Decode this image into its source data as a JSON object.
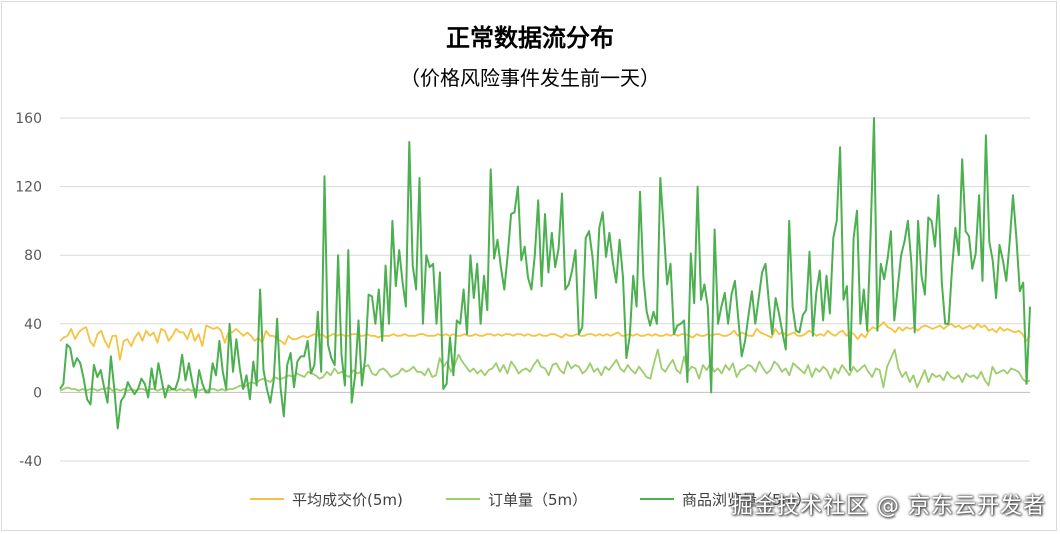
{
  "chart_data": {
    "type": "line",
    "title": "正常数据流分布",
    "subtitle": "（价格风险事件发生前一天）",
    "ylim": [
      -40,
      160
    ],
    "yticks": [
      -40,
      0,
      40,
      80,
      120,
      160
    ],
    "grid": true,
    "legend_position": "bottom",
    "series": [
      {
        "name": "平均成交价(5m)",
        "color": "#f5c342",
        "values": [
          30,
          32,
          33,
          37,
          31,
          35,
          37,
          38,
          30,
          27,
          34,
          36,
          30,
          26,
          33,
          33,
          19,
          30,
          31,
          27,
          32,
          35,
          30,
          36,
          33,
          35,
          29,
          37,
          36,
          30,
          33,
          37,
          35,
          35,
          31,
          37,
          30,
          34,
          27,
          39,
          38,
          37,
          38,
          36,
          29,
          35,
          35,
          37,
          35,
          33,
          35,
          33,
          30,
          32,
          29,
          36,
          33,
          33,
          31,
          30,
          28,
          33,
          31,
          31,
          32,
          33,
          32,
          33,
          34,
          33,
          34,
          32,
          33,
          34,
          33,
          34,
          33,
          33,
          34,
          34,
          33,
          33,
          34,
          33,
          33,
          32,
          33,
          33,
          33,
          34,
          33,
          33,
          34,
          33,
          33,
          33,
          34,
          34,
          33,
          33,
          33,
          34,
          33,
          34,
          33,
          34,
          33,
          33,
          34,
          33,
          33,
          34,
          33,
          33,
          34,
          34,
          33,
          34,
          33,
          34,
          34,
          33,
          34,
          34,
          33,
          34,
          33,
          33,
          34,
          33,
          33,
          34,
          34,
          33,
          32,
          34,
          33,
          33,
          34,
          33,
          33,
          34,
          34,
          33,
          34,
          33,
          34,
          33,
          34,
          35,
          33,
          33,
          34,
          33,
          34,
          33,
          33,
          34,
          33,
          34,
          33,
          33,
          34,
          33,
          34,
          33,
          34,
          34,
          33,
          32,
          34,
          33,
          33,
          34,
          33,
          34,
          34,
          33,
          33,
          34,
          36,
          33,
          35,
          34,
          33,
          33,
          37,
          35,
          34,
          33,
          32,
          37,
          34,
          35,
          33,
          34,
          35,
          33,
          33,
          34,
          36,
          35,
          33,
          34,
          33,
          36,
          34,
          33,
          35,
          36,
          33,
          35,
          34,
          31,
          34,
          32,
          36,
          38,
          37,
          39,
          41,
          38,
          37,
          35,
          38,
          36,
          38,
          37,
          38,
          36,
          38,
          39,
          38,
          37,
          38,
          39,
          37,
          39,
          40,
          38,
          39,
          37,
          38,
          39,
          37,
          40,
          38,
          39,
          36,
          37,
          35,
          38,
          36,
          37,
          36,
          35,
          36,
          34,
          30,
          33
        ]
      },
      {
        "name": "订单量（5m）",
        "color": "#9dcd6c",
        "values": [
          1,
          2,
          3,
          2,
          2,
          1,
          2,
          1,
          2,
          2,
          1,
          2,
          2,
          3,
          1,
          2,
          1,
          2,
          1,
          2,
          1,
          2,
          2,
          1,
          2,
          2,
          1,
          2,
          2,
          1,
          2,
          1,
          2,
          1,
          2,
          1,
          2,
          1,
          2,
          1,
          2,
          2,
          1,
          2,
          1,
          2,
          2,
          3,
          4,
          3,
          5,
          6,
          5,
          7,
          8,
          7,
          6,
          9,
          8,
          8,
          9,
          10,
          9,
          11,
          10,
          9,
          12,
          11,
          10,
          8,
          9,
          12,
          10,
          14,
          11,
          12,
          10,
          9,
          13,
          11,
          12,
          15,
          16,
          11,
          10,
          13,
          14,
          12,
          9,
          10,
          11,
          14,
          12,
          13,
          15,
          12,
          12,
          10,
          14,
          9,
          10,
          20,
          15,
          18,
          12,
          16,
          22,
          18,
          15,
          12,
          14,
          11,
          13,
          10,
          13,
          14,
          17,
          12,
          16,
          11,
          18,
          15,
          11,
          13,
          14,
          12,
          16,
          19,
          15,
          14,
          10,
          16,
          17,
          13,
          11,
          18,
          14,
          16,
          15,
          11,
          13,
          17,
          12,
          14,
          10,
          15,
          13,
          16,
          19,
          14,
          12,
          16,
          13,
          11,
          15,
          12,
          9,
          8,
          17,
          25,
          14,
          12,
          16,
          19,
          13,
          11,
          21,
          12,
          15,
          14,
          8,
          16,
          13,
          17,
          12,
          14,
          11,
          16,
          13,
          17,
          9,
          13,
          14,
          16,
          15,
          12,
          18,
          14,
          11,
          13,
          18,
          16,
          12,
          14,
          10,
          17,
          15,
          13,
          11,
          16,
          9,
          14,
          12,
          15,
          13,
          8,
          14,
          11,
          16,
          13,
          10,
          15,
          12,
          14,
          16,
          12,
          9,
          14,
          13,
          3,
          15,
          20,
          25,
          14,
          9,
          12,
          6,
          10,
          3,
          8,
          13,
          6,
          11,
          9,
          10,
          7,
          12,
          9,
          8,
          10,
          6,
          11,
          9,
          10,
          8,
          12,
          7,
          4,
          15,
          11,
          12,
          13,
          11,
          14,
          13,
          12,
          8,
          6,
          7
        ]
      },
      {
        "name": "商品浏览量（5m）",
        "color": "#4caf50",
        "values": [
          2,
          5,
          28,
          26,
          15,
          20,
          17,
          8,
          -4,
          -7,
          16,
          9,
          13,
          3,
          -6,
          21,
          2,
          -21,
          -5,
          -2,
          6,
          2,
          -1,
          2,
          8,
          5,
          -3,
          14,
          2,
          17,
          7,
          -3,
          4,
          2,
          2,
          8,
          22,
          7,
          17,
          6,
          -3,
          13,
          5,
          0,
          0,
          17,
          10,
          30,
          12,
          2,
          40,
          12,
          31,
          14,
          2,
          10,
          -4,
          18,
          4,
          60,
          13,
          2,
          -6,
          7,
          43,
          3,
          -14,
          16,
          23,
          3,
          18,
          21,
          21,
          30,
          11,
          16,
          47,
          12,
          126,
          28,
          20,
          16,
          80,
          22,
          4,
          83,
          -6,
          10,
          42,
          4,
          20,
          57,
          56,
          40,
          60,
          30,
          74,
          40,
          100,
          62,
          83,
          64,
          50,
          146,
          74,
          60,
          125,
          40,
          80,
          73,
          75,
          40,
          70,
          2,
          5,
          32,
          10,
          42,
          40,
          60,
          34,
          80,
          55,
          75,
          40,
          68,
          48,
          130,
          78,
          89,
          73,
          60,
          80,
          104,
          105,
          120,
          77,
          85,
          67,
          60,
          80,
          112,
          62,
          104,
          70,
          93,
          73,
          84,
          116,
          60,
          63,
          71,
          83,
          34,
          38,
          90,
          94,
          79,
          55,
          96,
          105,
          79,
          93,
          76,
          64,
          89,
          67,
          20,
          33,
          68,
          50,
          117,
          67,
          47,
          39,
          47,
          40,
          125,
          96,
          63,
          75,
          34,
          39,
          40,
          42,
          6,
          81,
          52,
          120,
          54,
          63,
          50,
          0,
          95,
          40,
          50,
          58,
          40,
          57,
          65,
          43,
          21,
          30,
          45,
          59,
          40,
          55,
          70,
          75,
          53,
          34,
          55,
          46,
          35,
          25,
          100,
          50,
          36,
          35,
          45,
          48,
          82,
          33,
          58,
          71,
          42,
          68,
          46,
          90,
          100,
          143,
          54,
          62,
          13,
          90,
          106,
          40,
          60,
          36,
          92,
          160,
          36,
          75,
          66,
          78,
          94,
          42,
          61,
          80,
          88,
          100,
          76,
          35,
          100,
          68,
          57,
          102,
          100,
          85,
          115,
          64,
          40,
          40,
          72,
          96,
          80,
          136,
          94,
          91,
          72,
          81,
          115,
          65,
          150,
          88,
          77,
          55,
          86,
          77,
          65,
          88,
          115,
          90,
          59,
          64,
          5,
          50
        ]
      }
    ]
  },
  "watermark": "掘金技术社区 @ 京东云开发者"
}
